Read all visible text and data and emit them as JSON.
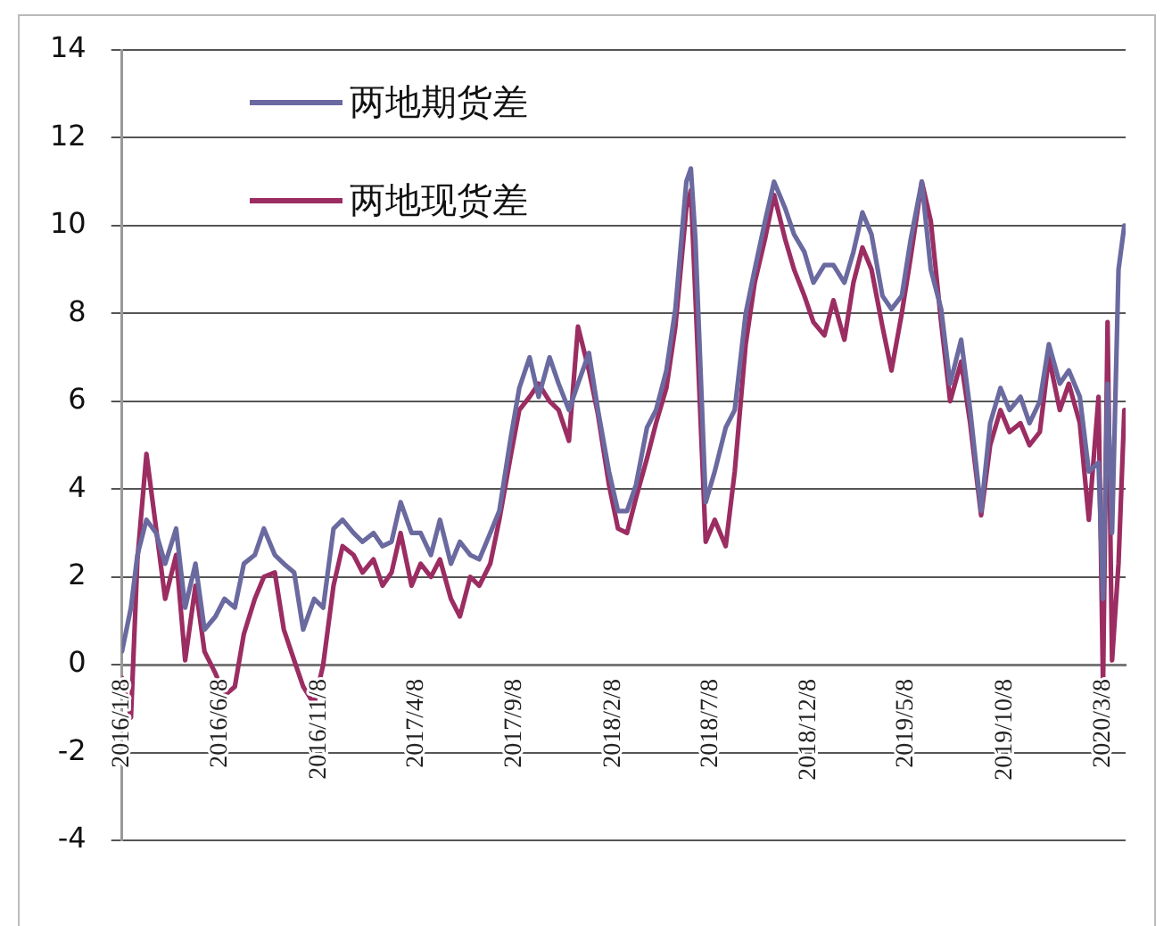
{
  "chart_data": {
    "type": "line",
    "x": [
      "2016-01-08",
      "2016-01-22",
      "2016-02-01",
      "2016-02-15",
      "2016-03-01",
      "2016-03-15",
      "2016-04-01",
      "2016-04-15",
      "2016-05-01",
      "2016-05-15",
      "2016-06-01",
      "2016-06-15",
      "2016-07-01",
      "2016-07-15",
      "2016-08-01",
      "2016-08-15",
      "2016-09-01",
      "2016-09-15",
      "2016-10-01",
      "2016-10-15",
      "2016-11-01",
      "2016-11-15",
      "2016-12-01",
      "2016-12-15",
      "2017-01-01",
      "2017-01-15",
      "2017-02-01",
      "2017-02-15",
      "2017-03-01",
      "2017-03-15",
      "2017-04-01",
      "2017-04-15",
      "2017-05-01",
      "2017-05-15",
      "2017-06-01",
      "2017-06-15",
      "2017-07-01",
      "2017-07-15",
      "2017-08-01",
      "2017-08-15",
      "2017-09-01",
      "2017-09-15",
      "2017-10-01",
      "2017-10-15",
      "2017-11-01",
      "2017-11-15",
      "2017-12-01",
      "2017-12-15",
      "2018-01-01",
      "2018-01-15",
      "2018-02-01",
      "2018-02-15",
      "2018-03-01",
      "2018-03-15",
      "2018-04-01",
      "2018-04-15",
      "2018-05-01",
      "2018-05-15",
      "2018-06-01",
      "2018-06-08",
      "2018-06-15",
      "2018-07-01",
      "2018-07-15",
      "2018-08-01",
      "2018-08-15",
      "2018-09-01",
      "2018-09-15",
      "2018-10-01",
      "2018-10-15",
      "2018-11-01",
      "2018-11-15",
      "2018-12-01",
      "2018-12-15",
      "2019-01-01",
      "2019-01-15",
      "2019-02-01",
      "2019-02-15",
      "2019-03-01",
      "2019-03-15",
      "2019-04-01",
      "2019-04-15",
      "2019-05-01",
      "2019-05-15",
      "2019-06-01",
      "2019-06-15",
      "2019-07-01",
      "2019-07-15",
      "2019-08-01",
      "2019-08-15",
      "2019-09-01",
      "2019-09-15",
      "2019-10-01",
      "2019-10-15",
      "2019-11-01",
      "2019-11-15",
      "2019-12-01",
      "2019-12-15",
      "2020-01-01",
      "2020-01-15",
      "2020-02-01",
      "2020-02-15",
      "2020-03-01",
      "2020-03-08",
      "2020-03-15",
      "2020-03-22",
      "2020-04-01",
      "2020-04-10"
    ],
    "series": [
      {
        "name": "两地期货差",
        "color": "#6a6aa0",
        "values": [
          0.3,
          1.3,
          2.5,
          3.3,
          3.0,
          2.3,
          3.1,
          1.3,
          2.3,
          0.8,
          1.1,
          1.5,
          1.3,
          2.3,
          2.5,
          3.1,
          2.5,
          2.3,
          2.1,
          0.8,
          1.5,
          1.3,
          3.1,
          3.3,
          3.0,
          2.8,
          3.0,
          2.7,
          2.8,
          3.7,
          3.0,
          3.0,
          2.5,
          3.3,
          2.3,
          2.8,
          2.5,
          2.4,
          3.0,
          3.5,
          5.1,
          6.3,
          7.0,
          6.1,
          7.0,
          6.4,
          5.8,
          6.4,
          7.1,
          5.8,
          4.4,
          3.5,
          3.5,
          4.1,
          5.4,
          5.8,
          6.7,
          8.1,
          11.0,
          11.3,
          9.7,
          3.7,
          4.4,
          5.4,
          5.8,
          8.0,
          9.0,
          10.1,
          11.0,
          10.4,
          9.8,
          9.4,
          8.7,
          9.1,
          9.1,
          8.7,
          9.4,
          10.3,
          9.8,
          8.4,
          8.1,
          8.4,
          9.7,
          11.0,
          9.0,
          8.1,
          6.4,
          7.4,
          5.8,
          3.5,
          5.5,
          6.3,
          5.8,
          6.1,
          5.5,
          6.0,
          7.3,
          6.4,
          6.7,
          6.1,
          4.4,
          4.6,
          1.5,
          6.4,
          3.0,
          9.0,
          10.0
        ]
      },
      {
        "name": "两地现货差",
        "color": "#9b2d62",
        "values": [
          -0.3,
          -1.2,
          2.4,
          4.8,
          3.1,
          1.5,
          2.5,
          0.1,
          1.8,
          0.3,
          -0.2,
          -0.7,
          -0.5,
          0.7,
          1.5,
          2.0,
          2.1,
          0.8,
          0.1,
          -0.5,
          -0.9,
          0.0,
          1.8,
          2.7,
          2.5,
          2.1,
          2.4,
          1.8,
          2.1,
          3.0,
          1.8,
          2.3,
          2.0,
          2.4,
          1.5,
          1.1,
          2.0,
          1.8,
          2.3,
          3.3,
          4.7,
          5.8,
          6.1,
          6.4,
          6.0,
          5.8,
          5.1,
          7.7,
          6.7,
          5.7,
          4.1,
          3.1,
          3.0,
          3.8,
          4.7,
          5.5,
          6.3,
          7.7,
          10.4,
          10.8,
          8.4,
          2.8,
          3.3,
          2.7,
          4.4,
          7.3,
          8.7,
          9.7,
          10.7,
          9.7,
          9.0,
          8.4,
          7.8,
          7.5,
          8.3,
          7.4,
          8.7,
          9.5,
          9.0,
          7.7,
          6.7,
          8.0,
          9.3,
          11.0,
          10.1,
          7.8,
          6.0,
          6.9,
          5.5,
          3.4,
          5.0,
          5.8,
          5.3,
          5.5,
          5.0,
          5.3,
          7.0,
          5.8,
          6.4,
          5.5,
          3.3,
          6.1,
          -0.5,
          7.8,
          0.1,
          2.3,
          5.8
        ]
      }
    ],
    "xlim": [
      "2016-01-08",
      "2020-04-12"
    ],
    "xticks": [
      {
        "value": "2016-01-08",
        "label": "2016/1/8"
      },
      {
        "value": "2016-06-08",
        "label": "2016/6/8"
      },
      {
        "value": "2016-11-08",
        "label": "2016/11/8"
      },
      {
        "value": "2017-04-08",
        "label": "2017/4/8"
      },
      {
        "value": "2017-09-08",
        "label": "2017/9/8"
      },
      {
        "value": "2018-02-08",
        "label": "2018/2/8"
      },
      {
        "value": "2018-07-08",
        "label": "2018/7/8"
      },
      {
        "value": "2018-12-08",
        "label": "2018/12/8"
      },
      {
        "value": "2019-05-08",
        "label": "2019/5/8"
      },
      {
        "value": "2019-10-08",
        "label": "2019/10/8"
      },
      {
        "value": "2020-03-08",
        "label": "2020/3/8"
      }
    ],
    "ylim": [
      -4,
      14
    ],
    "yticks": [
      -4,
      -2,
      0,
      2,
      4,
      6,
      8,
      10,
      12,
      14
    ],
    "grid": "y",
    "legend": "top left",
    "marker": "none",
    "line_style": "solid"
  }
}
